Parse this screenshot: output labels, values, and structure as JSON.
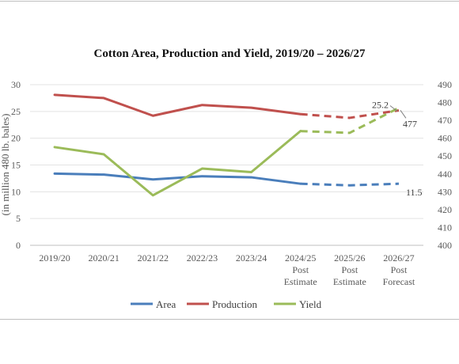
{
  "chart_data": {
    "type": "line",
    "title": "Cotton Area, Production and Yield, 2019/20 – 2026/27",
    "ylabel_left": "(in million 480 lb. bales)",
    "categories": [
      [
        "2019/20"
      ],
      [
        "2020/21"
      ],
      [
        "2021/22"
      ],
      [
        "2022/23"
      ],
      [
        "2023/24"
      ],
      [
        "2024/25",
        "Post",
        "Estimate"
      ],
      [
        "2025/26",
        "Post",
        "Estimate"
      ],
      [
        "2026/27",
        "Post",
        "Forecast"
      ]
    ],
    "ylim_left": [
      0,
      30
    ],
    "yticks_left": [
      0,
      5,
      10,
      15,
      20,
      25,
      30
    ],
    "ylim_right": [
      400,
      490
    ],
    "yticks_right": [
      400,
      410,
      420,
      430,
      440,
      450,
      460,
      470,
      480,
      490
    ],
    "solid_until_index": 5,
    "series": [
      {
        "name": "Area",
        "axis": "left",
        "color": "#4a7ebb",
        "values": [
          13.4,
          13.2,
          12.3,
          12.9,
          12.7,
          11.5,
          11.2,
          11.5
        ]
      },
      {
        "name": "Production",
        "axis": "left",
        "color": "#c0504d",
        "values": [
          28.1,
          27.5,
          24.2,
          26.2,
          25.7,
          24.5,
          23.8,
          25.2
        ]
      },
      {
        "name": "Yield",
        "axis": "right",
        "color": "#9bbb59",
        "values": [
          455,
          451,
          428,
          443,
          441,
          464,
          463,
          477
        ]
      }
    ],
    "annotations": [
      {
        "text": "25.2",
        "series": "Production",
        "index": 7
      },
      {
        "text": "477",
        "series": "Yield",
        "index": 7
      },
      {
        "text": "11.5",
        "series": "Area",
        "index": 7
      }
    ],
    "legend_position": "bottom",
    "grid": "horizontal"
  }
}
